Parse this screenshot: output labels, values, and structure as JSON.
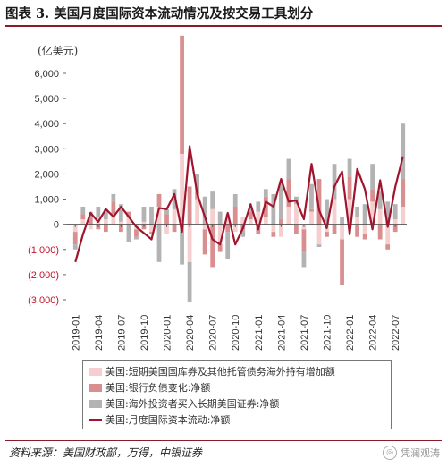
{
  "title": "图表 3. 美国月度国际资本流动情况及按交易工具划分",
  "source": "资料来源：美国财政部，万得，中银证券",
  "watermark": "凭澜观涛",
  "chart_data": {
    "type": "bar+line",
    "unit": "(亿美元)",
    "ylim": [
      -3000,
      6000
    ],
    "yticks": [
      -3000,
      -2000,
      -1000,
      0,
      1000,
      2000,
      3000,
      4000,
      5000,
      6000
    ],
    "ytick_labels": [
      "(3,000)",
      "(2,000)",
      "(1,000)",
      "0",
      "1,000",
      "2,000",
      "3,000",
      "4,000",
      "5,000",
      "6,000"
    ],
    "xtick_labels": [
      "2019-01",
      "2019-04",
      "2019-07",
      "2019-10",
      "2020-01",
      "2020-04",
      "2020-07",
      "2020-10",
      "2021-01",
      "2021-04",
      "2021-07",
      "2021-10",
      "2022-01",
      "2022-04",
      "2022-07"
    ],
    "categories": [
      "2019-01",
      "2019-02",
      "2019-03",
      "2019-04",
      "2019-05",
      "2019-06",
      "2019-07",
      "2019-08",
      "2019-09",
      "2019-10",
      "2019-11",
      "2019-12",
      "2020-01",
      "2020-02",
      "2020-03",
      "2020-04",
      "2020-05",
      "2020-06",
      "2020-07",
      "2020-08",
      "2020-09",
      "2020-10",
      "2020-11",
      "2020-12",
      "2021-01",
      "2021-02",
      "2021-03",
      "2021-04",
      "2021-05",
      "2021-06",
      "2021-07",
      "2021-08",
      "2021-09",
      "2021-10",
      "2021-11",
      "2021-12",
      "2022-01",
      "2022-02",
      "2022-03",
      "2022-04",
      "2022-05",
      "2022-06",
      "2022-07",
      "2022-08"
    ],
    "series": [
      {
        "name": "美国:短期美国国库券及其他托管债务海外持有增加额",
        "type": "bar",
        "color": "#f5cfcf",
        "values": [
          -300,
          200,
          -200,
          300,
          200,
          400,
          100,
          300,
          -200,
          100,
          -300,
          700,
          -400,
          600,
          2800,
          -1500,
          1000,
          -200,
          600,
          -800,
          400,
          -300,
          300,
          200,
          500,
          300,
          -300,
          -500,
          700,
          800,
          -200,
          500,
          -800,
          -300,
          1000,
          -600,
          1000,
          300,
          -400,
          900,
          600,
          -800,
          200,
          700
        ]
      },
      {
        "name": "美国:银行负债变化:净额",
        "type": "bar",
        "color": "#d98f8f",
        "values": [
          -500,
          200,
          300,
          -200,
          -300,
          500,
          -300,
          200,
          -300,
          -200,
          -100,
          500,
          400,
          -300,
          4700,
          1500,
          300,
          -1000,
          -1700,
          -300,
          -300,
          700,
          -200,
          300,
          -400,
          800,
          -200,
          200,
          1100,
          -400,
          -900,
          100,
          1800,
          -200,
          -400,
          -1800,
          900,
          -500,
          -200,
          500,
          -600,
          -200,
          -300,
          1100
        ]
      },
      {
        "name": "美国:海外投资者买入长期美国证券:净额",
        "type": "bar",
        "color": "#b3b3b3",
        "values": [
          -200,
          300,
          200,
          400,
          400,
          300,
          700,
          -700,
          -100,
          600,
          700,
          -1500,
          200,
          800,
          -1600,
          -1600,
          700,
          1100,
          700,
          500,
          -1100,
          500,
          -300,
          200,
          400,
          300,
          1200,
          1500,
          800,
          300,
          -600,
          1000,
          -100,
          1000,
          1400,
          300,
          700,
          400,
          800,
          1000,
          700,
          900,
          600,
          2200
        ]
      },
      {
        "name": "美国:月度国际资本流动:净额",
        "type": "line",
        "color": "#a0152d",
        "values": [
          -1500,
          -400,
          450,
          100,
          600,
          300,
          700,
          300,
          -100,
          -350,
          -600,
          650,
          600,
          1200,
          -300,
          3100,
          1200,
          300,
          -600,
          -800,
          450,
          -800,
          -150,
          800,
          -200,
          900,
          700,
          1800,
          900,
          950,
          200,
          2400,
          550,
          -150,
          1500,
          2100,
          -400,
          2200,
          1400,
          -200,
          1750,
          -100,
          1500,
          2700
        ]
      }
    ]
  }
}
